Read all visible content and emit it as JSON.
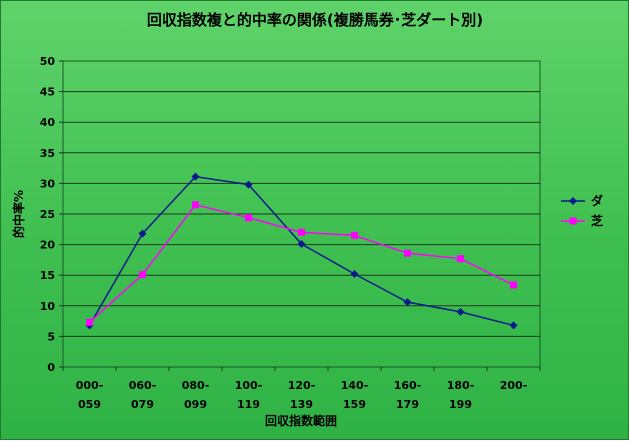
{
  "chart_data": {
    "type": "line",
    "title": "回収指数複と的中率の関係(複勝馬券･芝ダート別)",
    "xlabel": "回収指数範囲",
    "ylabel": "的中率%",
    "ylim": [
      0,
      50
    ],
    "y_ticks": [
      0,
      5,
      10,
      15,
      20,
      25,
      30,
      35,
      40,
      45,
      50
    ],
    "categories": [
      [
        "000-",
        "059"
      ],
      [
        "060-",
        "079"
      ],
      [
        "080-",
        "099"
      ],
      [
        "100-",
        "119"
      ],
      [
        "120-",
        "139"
      ],
      [
        "140-",
        "159"
      ],
      [
        "160-",
        "179"
      ],
      [
        "180-",
        "199"
      ],
      [
        "200-",
        ""
      ]
    ],
    "series": [
      {
        "name": "ダ",
        "color": "#0a1a8c",
        "marker": "diamond",
        "values": [
          6.8,
          21.8,
          31.1,
          29.8,
          20.1,
          15.2,
          10.6,
          9.0,
          6.8
        ]
      },
      {
        "name": "芝",
        "color": "#ff00ff",
        "marker": "square",
        "values": [
          7.3,
          15.1,
          26.5,
          24.4,
          22.0,
          21.5,
          18.6,
          17.7,
          13.4
        ]
      }
    ],
    "grid": true,
    "legend_position": "right"
  }
}
